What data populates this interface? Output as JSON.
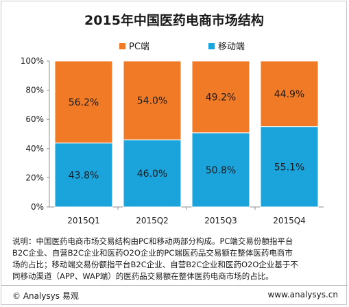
{
  "colors": {
    "pc": "#F07A26",
    "mobile": "#1BA4DC",
    "axis": "#8c8c8c",
    "grid": "#d9d9d9"
  },
  "chart_data": {
    "type": "bar",
    "stacked": true,
    "title": "2015年中国医药电商市场结构",
    "categories": [
      "2015Q1",
      "2015Q2",
      "2015Q3",
      "2015Q4"
    ],
    "ylim": [
      0,
      100
    ],
    "yticks": [
      "0%",
      "20%",
      "40%",
      "60%",
      "80%",
      "100%"
    ],
    "ytick_values": [
      0,
      20,
      40,
      60,
      80,
      100
    ],
    "legend_position": "top",
    "grid": false,
    "series": [
      {
        "name": "移动端",
        "color": "#1BA4DC",
        "values": [
          43.8,
          46.0,
          50.8,
          55.1
        ],
        "labels": [
          "43.8%",
          "46.0%",
          "50.8%",
          "55.1%"
        ]
      },
      {
        "name": "PC端",
        "color": "#F07A26",
        "values": [
          56.2,
          54.0,
          49.2,
          44.9
        ],
        "labels": [
          "56.2%",
          "54.0%",
          "49.2%",
          "44.9%"
        ]
      }
    ],
    "legend": [
      "PC端",
      "移动端"
    ]
  },
  "note": {
    "lines": [
      "说明：中国医药电商市场交易结构由PC和移动两部分构成。PC端交易份额指平台",
      "B2C企业、自营B2C企业和医药O2O企业的PC端医药品交易额在整体医药电商市",
      "场的占比；移动端交易份额指平台B2C企业、自营B2C企业和医药O2O企业基于不",
      "同移动渠道（APP、WAP端）的医药品交易额在整体医药电商市场的占比。"
    ]
  },
  "footer": {
    "left": "© Analysys 易观",
    "right": "www.analysys.cn"
  }
}
